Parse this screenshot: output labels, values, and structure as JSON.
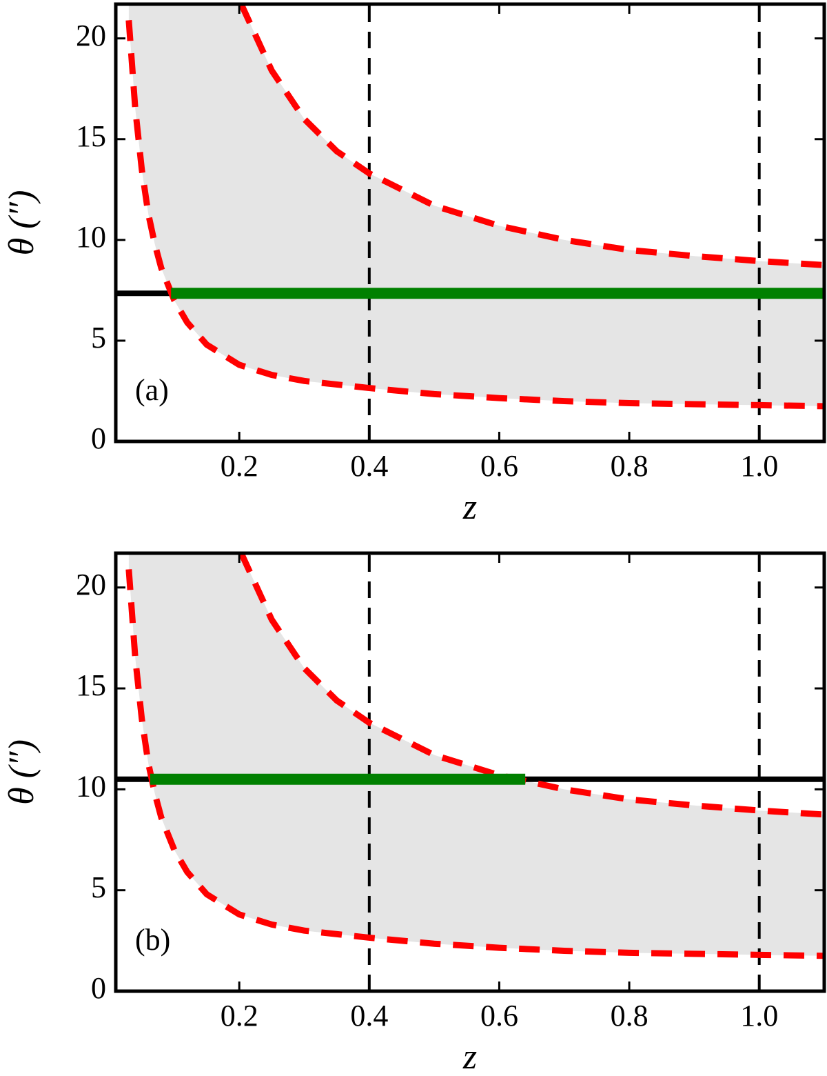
{
  "chart_data": [
    {
      "type": "line",
      "annotation": "(a)",
      "xlabel": "z",
      "ylabel": "θ (″)",
      "xlim": [
        0.01,
        1.1
      ],
      "ylim": [
        0,
        21.7
      ],
      "xticks": [
        0.2,
        0.4,
        0.6,
        0.8,
        {
          "value": 1,
          "label": "1.0"
        }
      ],
      "yticks": [
        0,
        5,
        10,
        15,
        20
      ],
      "vlines": [
        0.4,
        1.0
      ],
      "shade_color": "#e5e5e5",
      "hline": {
        "y": 7.35,
        "color": "#000000"
      },
      "series": [
        {
          "color": "#ff0000",
          "dashed": true,
          "x": [
            0.203,
            0.25,
            0.3,
            0.35,
            0.4,
            0.5,
            0.6,
            0.7,
            0.8,
            0.9,
            1.0,
            1.1
          ],
          "values": [
            21.7,
            18.4,
            16.0,
            14.4,
            13.3,
            11.7,
            10.7,
            10.0,
            9.5,
            9.2,
            8.95,
            8.75
          ]
        },
        {
          "color": "#ff0000",
          "dashed": true,
          "x": [
            0.03,
            0.04,
            0.05,
            0.06,
            0.07,
            0.08,
            0.1,
            0.12,
            0.15,
            0.2,
            0.25,
            0.3,
            0.4,
            0.5,
            0.6,
            0.7,
            0.8,
            0.9,
            1.0,
            1.1
          ],
          "values": [
            20.9,
            16.5,
            13.5,
            11.3,
            9.8,
            8.6,
            7.0,
            5.9,
            4.8,
            3.8,
            3.3,
            3.0,
            2.65,
            2.35,
            2.15,
            2.0,
            1.9,
            1.85,
            1.8,
            1.75
          ]
        },
        {
          "color": "#008000",
          "dashed": false,
          "x": [
            0.095,
            1.1
          ],
          "values": [
            7.35,
            7.35
          ]
        }
      ]
    },
    {
      "type": "line",
      "annotation": "(b)",
      "xlabel": "z",
      "ylabel": "θ (″)",
      "xlim": [
        0.01,
        1.1
      ],
      "ylim": [
        0,
        21.7
      ],
      "xticks": [
        0.2,
        0.4,
        0.6,
        0.8,
        {
          "value": 1,
          "label": "1.0"
        }
      ],
      "yticks": [
        0,
        5,
        10,
        15,
        20
      ],
      "vlines": [
        0.4,
        1.0
      ],
      "shade_color": "#e5e5e5",
      "hline": {
        "y": 10.5,
        "color": "#000000"
      },
      "series": [
        {
          "color": "#ff0000",
          "dashed": true,
          "x": [
            0.203,
            0.25,
            0.3,
            0.35,
            0.4,
            0.5,
            0.6,
            0.7,
            0.8,
            0.9,
            1.0,
            1.1
          ],
          "values": [
            21.7,
            18.4,
            16.0,
            14.4,
            13.3,
            11.7,
            10.7,
            10.0,
            9.5,
            9.2,
            8.95,
            8.75
          ]
        },
        {
          "color": "#ff0000",
          "dashed": true,
          "x": [
            0.03,
            0.04,
            0.05,
            0.06,
            0.07,
            0.08,
            0.1,
            0.12,
            0.15,
            0.2,
            0.25,
            0.3,
            0.4,
            0.5,
            0.6,
            0.7,
            0.8,
            0.9,
            1.0,
            1.1
          ],
          "values": [
            20.9,
            16.5,
            13.5,
            11.3,
            9.8,
            8.6,
            7.0,
            5.9,
            4.8,
            3.8,
            3.3,
            3.0,
            2.65,
            2.35,
            2.15,
            2.0,
            1.9,
            1.85,
            1.8,
            1.75
          ]
        },
        {
          "color": "#008000",
          "dashed": false,
          "x": [
            0.063,
            0.64
          ],
          "values": [
            10.5,
            10.5
          ]
        }
      ]
    }
  ]
}
